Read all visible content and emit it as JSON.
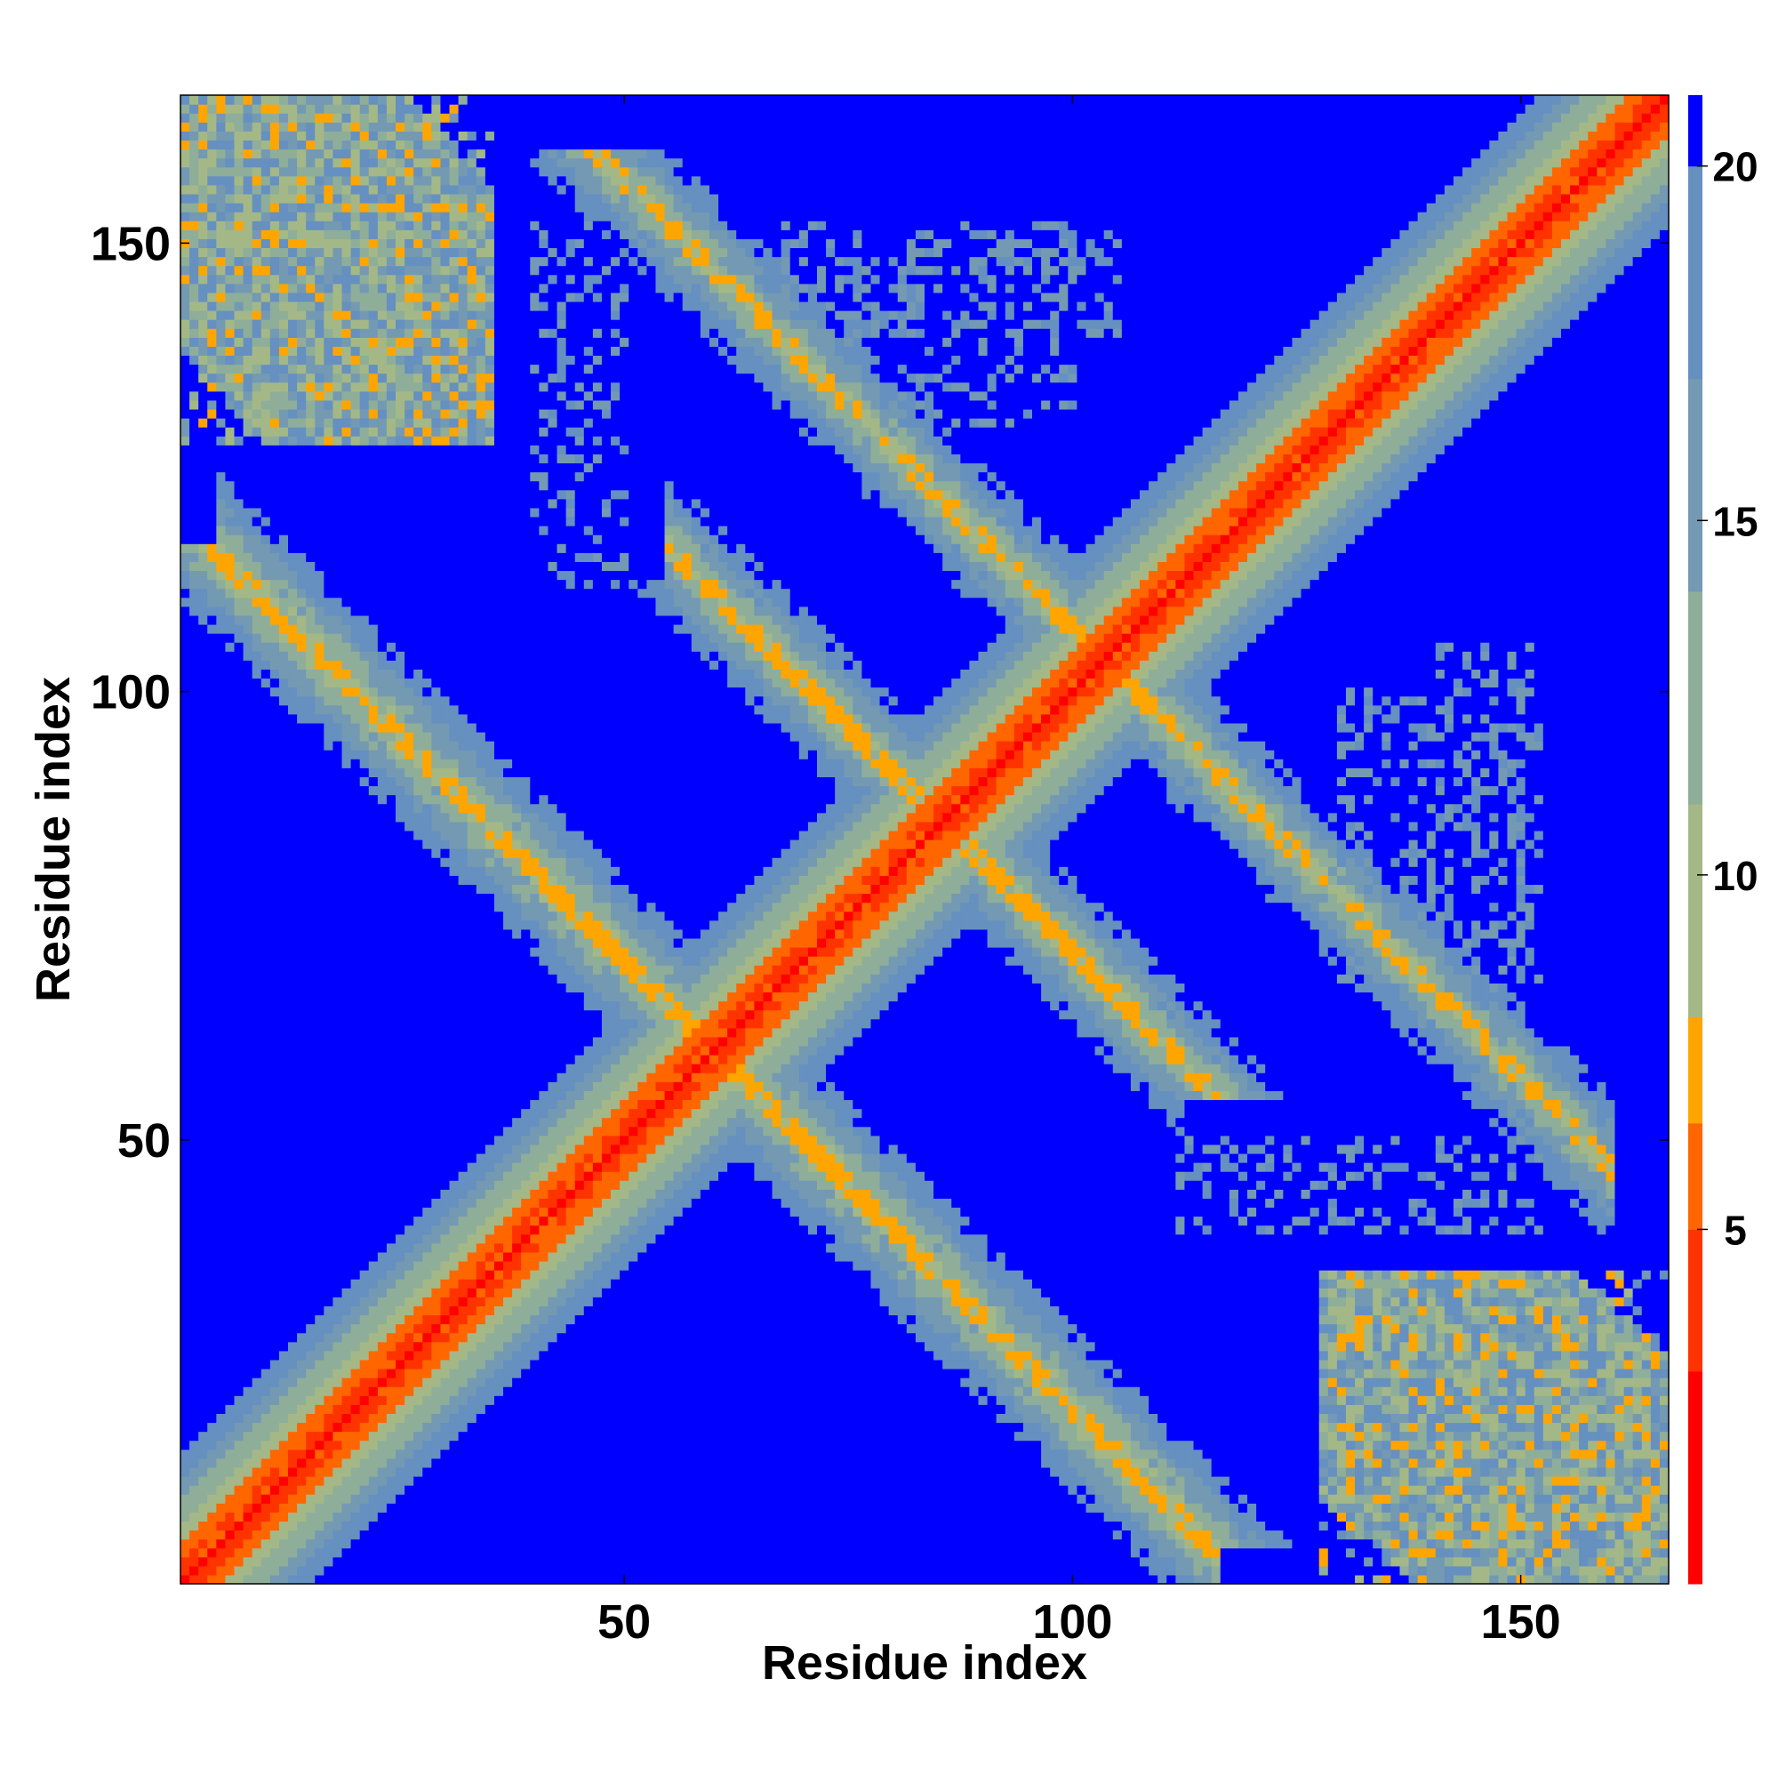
{
  "chart_data": {
    "type": "heatmap",
    "title": "",
    "xlabel": "Residue index",
    "ylabel": "Residue index",
    "xlim": [
      1,
      166
    ],
    "ylim": [
      1,
      166
    ],
    "x_ticks": [
      50,
      100,
      150
    ],
    "y_ticks": [
      50,
      100,
      150
    ],
    "grid": false,
    "colorbar": {
      "position": "right",
      "range": [
        0,
        21
      ],
      "ticks": [
        5,
        10,
        15,
        20
      ],
      "levels": [
        {
          "from": 0,
          "to": 3,
          "color": "#ff0000"
        },
        {
          "from": 3,
          "to": 5,
          "color": "#ff3300"
        },
        {
          "from": 5,
          "to": 6.5,
          "color": "#ff6600"
        },
        {
          "from": 6.5,
          "to": 8,
          "color": "#ffa500"
        },
        {
          "from": 8,
          "to": 11,
          "color": "#a4b887"
        },
        {
          "from": 11,
          "to": 14,
          "color": "#8eae9a"
        },
        {
          "from": 14,
          "to": 17,
          "color": "#7499b3"
        },
        {
          "from": 17,
          "to": 20,
          "color": "#6590c0"
        },
        {
          "from": 20,
          "to": 21,
          "color": "#0000ff"
        }
      ]
    },
    "background_value": 21,
    "features": [
      {
        "kind": "diagonal",
        "value": 0
      },
      {
        "kind": "diagonal-band",
        "half_width": 14,
        "values": [
          3,
          6,
          9,
          12,
          16,
          18
        ]
      },
      {
        "kind": "antiparallel-band",
        "i_plus_j": 120,
        "i_range": [
          5,
          116
        ],
        "half_width": 9,
        "values": [
          7,
          10,
          13,
          16,
          18
        ]
      },
      {
        "kind": "antiparallel-band",
        "i_plus_j": 171,
        "i_range": [
          55,
          112
        ],
        "half_width": 8,
        "values": [
          7,
          10,
          13,
          16,
          18
        ]
      },
      {
        "kind": "antiparallel-band",
        "i_plus_j": 207,
        "i_range": [
          95,
          160
        ],
        "half_width": 8,
        "values": [
          7,
          10,
          13,
          16,
          18
        ]
      },
      {
        "kind": "block",
        "i_range": [
          1,
          35
        ],
        "j_range": [
          128,
          166
        ],
        "values": [
          7,
          10,
          13,
          16,
          18
        ]
      },
      {
        "kind": "block",
        "i_range": [
          128,
          166
        ],
        "j_range": [
          1,
          35
        ],
        "values": [
          7,
          10,
          13,
          16,
          18
        ]
      },
      {
        "kind": "sparse-region",
        "i_range": [
          40,
          50
        ],
        "j_range": [
          112,
          152
        ],
        "values": [
          16,
          18,
          20
        ]
      },
      {
        "kind": "sparse-region",
        "i_range": [
          66,
          105
        ],
        "j_range": [
          140,
          152
        ],
        "values": [
          16,
          18,
          20
        ]
      },
      {
        "kind": "sparse-region",
        "i_range": [
          112,
          152
        ],
        "j_range": [
          40,
          50
        ],
        "values": [
          16,
          18,
          20
        ]
      },
      {
        "kind": "sparse-region",
        "i_range": [
          140,
          152
        ],
        "j_range": [
          66,
          105
        ],
        "values": [
          16,
          18,
          20
        ]
      },
      {
        "kind": "sparse-region",
        "i_range": [
          130,
          150
        ],
        "j_range": [
          68,
          100
        ],
        "values": [
          16,
          18,
          20
        ]
      },
      {
        "kind": "sparse-region",
        "i_range": [
          68,
          100
        ],
        "j_range": [
          130,
          150
        ],
        "values": [
          16,
          18,
          20
        ]
      }
    ]
  }
}
